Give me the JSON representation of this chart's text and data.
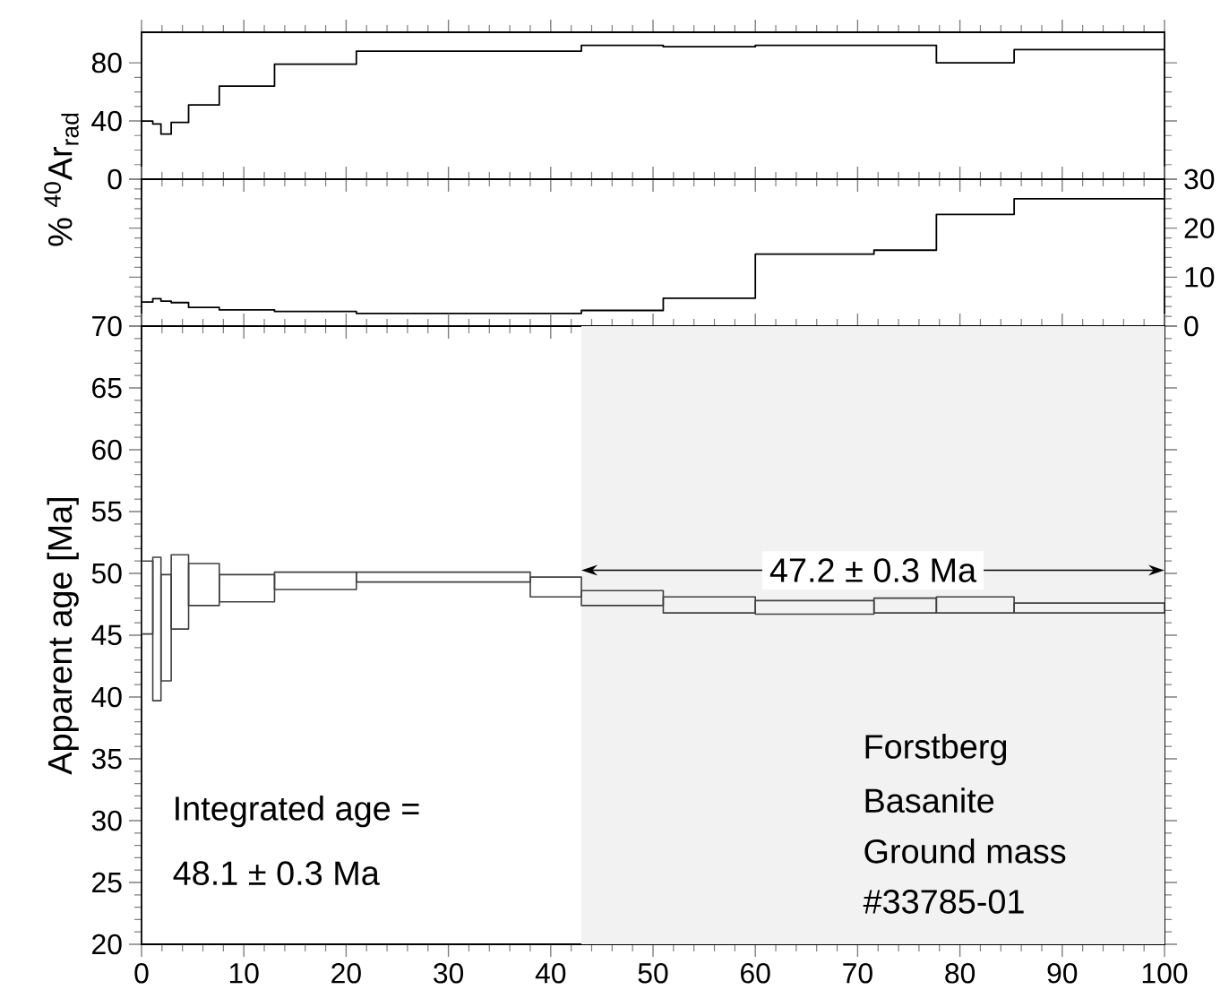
{
  "chart_data": [
    {
      "type": "step",
      "x": [
        0,
        1.1,
        1.9,
        2.9,
        4.6,
        7.6,
        13,
        21,
        38,
        43,
        51,
        60,
        71.6,
        77.7,
        85.3,
        100
      ],
      "values": [
        40,
        38,
        31,
        39,
        51,
        64,
        79,
        88,
        88,
        92,
        91,
        92,
        92,
        80,
        89,
        89
      ],
      "xlim": [
        0,
        100
      ],
      "xticks": [
        0,
        10,
        20,
        30,
        40,
        50,
        60,
        70,
        80,
        90,
        100
      ],
      "ylim": [
        0,
        101
      ],
      "yticks": [
        0,
        40,
        80
      ],
      "ylabel": "% $^{40}$Ar$_{rad}$",
      "tick_labels": "y"
    },
    {
      "type": "step",
      "series": [
        {
          "axis": "y2",
          "x": [
            0,
            1.1,
            1.9,
            2.9,
            4.6,
            7.6,
            13,
            21,
            38,
            43,
            51,
            60,
            71.6,
            77.7,
            85.3,
            100
          ],
          "values": [
            4.9,
            5.6,
            5.1,
            4.8,
            3.8,
            3.3,
            3.0,
            2.6,
            2.6,
            3.2,
            5.7,
            14.7,
            15.5,
            22.8,
            26.0,
            26.0
          ]
        }
      ],
      "xlim": [
        0,
        100
      ],
      "xticks": [
        0,
        10,
        20,
        30,
        40,
        50,
        60,
        70,
        80,
        90,
        100
      ],
      "y2lim": [
        0,
        30
      ],
      "y2ticks": [
        0,
        10,
        20,
        30
      ],
      "tick_labels": "y"
    },
    {
      "type": "bar",
      "series": [
        {
          "x": [
            0.55,
            1.5,
            2.4,
            3.75,
            6.1,
            10.3,
            17,
            29.5,
            40.5,
            47,
            55.5,
            65.8,
            74.65,
            81.5,
            92.65
          ],
          "base": [
            45.1,
            39.7,
            41.3,
            45.5,
            47.4,
            47.7,
            48.7,
            49.3,
            48.1,
            47.4,
            46.8,
            46.7,
            46.8,
            46.8,
            46.8
          ],
          "values": [
            5.9,
            11.6,
            8.6,
            6.0,
            3.4,
            2.2,
            1.4,
            0.8,
            1.6,
            1.2,
            1.3,
            1.1,
            1.2,
            1.3,
            0.8
          ]
        }
      ],
      "xlim": [
        0,
        100
      ],
      "xticks": [
        0,
        10,
        20,
        30,
        40,
        50,
        60,
        70,
        80,
        90,
        100
      ],
      "ylim": [
        20,
        70
      ],
      "yticks": [
        20,
        25,
        30,
        35,
        40,
        45,
        50,
        55,
        60,
        65,
        70
      ],
      "ylabel": "Apparent age [Ma]",
      "bands": [
        {
          "axis": "x",
          "from": 43,
          "to": 100,
          "label": "47.2 ± 0.3 Ma"
        }
      ],
      "annotations": [
        "Integrated age =",
        "48.1 ± 0.3 Ma",
        "Forstberg",
        "Basanite",
        "Ground mass",
        "#33785-01"
      ]
    }
  ]
}
